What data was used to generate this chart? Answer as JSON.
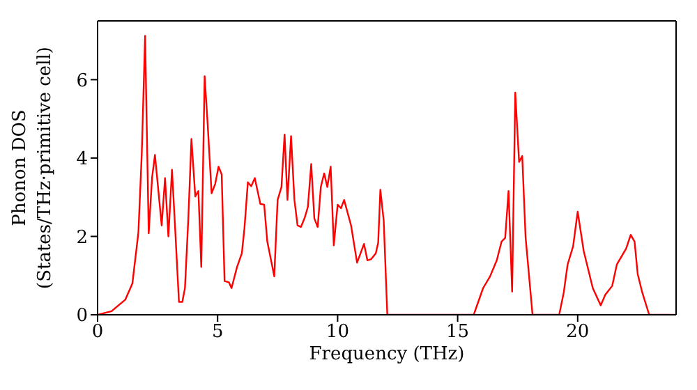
{
  "chart_data": {
    "type": "line",
    "xlabel": "Frequency (THz)",
    "ylabel": "Phonon DOS\n(States/THz·primitive cell)",
    "x": [
      0,
      0.58,
      1.16,
      1.45,
      1.7,
      1.84,
      1.98,
      2.13,
      2.27,
      2.39,
      2.67,
      2.81,
      2.95,
      3.1,
      3.24,
      3.39,
      3.53,
      3.64,
      3.78,
      3.91,
      4.07,
      4.2,
      4.32,
      4.46,
      4.59,
      4.75,
      4.9,
      5.04,
      5.17,
      5.29,
      5.47,
      5.58,
      5.81,
      6.01,
      6.12,
      6.26,
      6.4,
      6.55,
      6.78,
      6.94,
      7.07,
      7.36,
      7.5,
      7.66,
      7.79,
      7.91,
      8.06,
      8.2,
      8.33,
      8.47,
      8.62,
      8.76,
      8.9,
      9.03,
      9.17,
      9.3,
      9.44,
      9.57,
      9.71,
      9.84,
      10.0,
      10.14,
      10.27,
      10.56,
      10.81,
      11.1,
      11.24,
      11.4,
      11.59,
      11.69,
      11.78,
      11.92,
      12.07,
      15.67,
      16.06,
      16.35,
      16.63,
      16.83,
      16.98,
      17.12,
      17.27,
      17.4,
      17.56,
      17.69,
      17.83,
      18.12,
      19.23,
      19.42,
      19.58,
      19.81,
      20.0,
      20.25,
      20.63,
      20.96,
      21.15,
      21.44,
      21.63,
      22.02,
      22.21,
      22.37,
      22.5,
      22.69,
      22.98,
      24.04
    ],
    "series": [
      {
        "color": "#ff0000",
        "values": [
          0,
          0.09,
          0.39,
          0.8,
          2.1,
          4.1,
          7.12,
          2.08,
          3.5,
          4.08,
          2.28,
          3.49,
          2.0,
          3.7,
          2.1,
          0.33,
          0.33,
          0.68,
          2.45,
          4.49,
          3.02,
          3.16,
          1.22,
          6.09,
          4.82,
          3.1,
          3.34,
          3.78,
          3.58,
          0.86,
          0.83,
          0.68,
          1.22,
          1.57,
          2.22,
          3.38,
          3.28,
          3.49,
          2.83,
          2.81,
          1.87,
          0.98,
          2.93,
          3.26,
          4.6,
          2.93,
          4.56,
          2.93,
          2.28,
          2.24,
          2.46,
          2.75,
          3.85,
          2.46,
          2.24,
          3.26,
          3.61,
          3.26,
          3.78,
          1.77,
          2.81,
          2.72,
          2.93,
          2.28,
          1.33,
          1.81,
          1.39,
          1.42,
          1.57,
          1.84,
          3.19,
          2.4,
          0,
          0,
          0.68,
          0.98,
          1.39,
          1.87,
          1.96,
          3.16,
          0.59,
          5.67,
          3.9,
          4.05,
          1.98,
          0,
          0,
          0.57,
          1.28,
          1.75,
          2.63,
          1.63,
          0.68,
          0.24,
          0.51,
          0.74,
          1.28,
          1.69,
          2.04,
          1.87,
          1.04,
          0.57,
          0,
          0
        ]
      }
    ],
    "xlim": [
      0,
      24.1
    ],
    "ylim": [
      0,
      7.5
    ],
    "xticks": [
      0,
      5,
      10,
      15,
      20
    ],
    "yticks": [
      0,
      2,
      4,
      6
    ],
    "grid": false,
    "legend": false,
    "marker": "none",
    "line_style": "solid"
  }
}
